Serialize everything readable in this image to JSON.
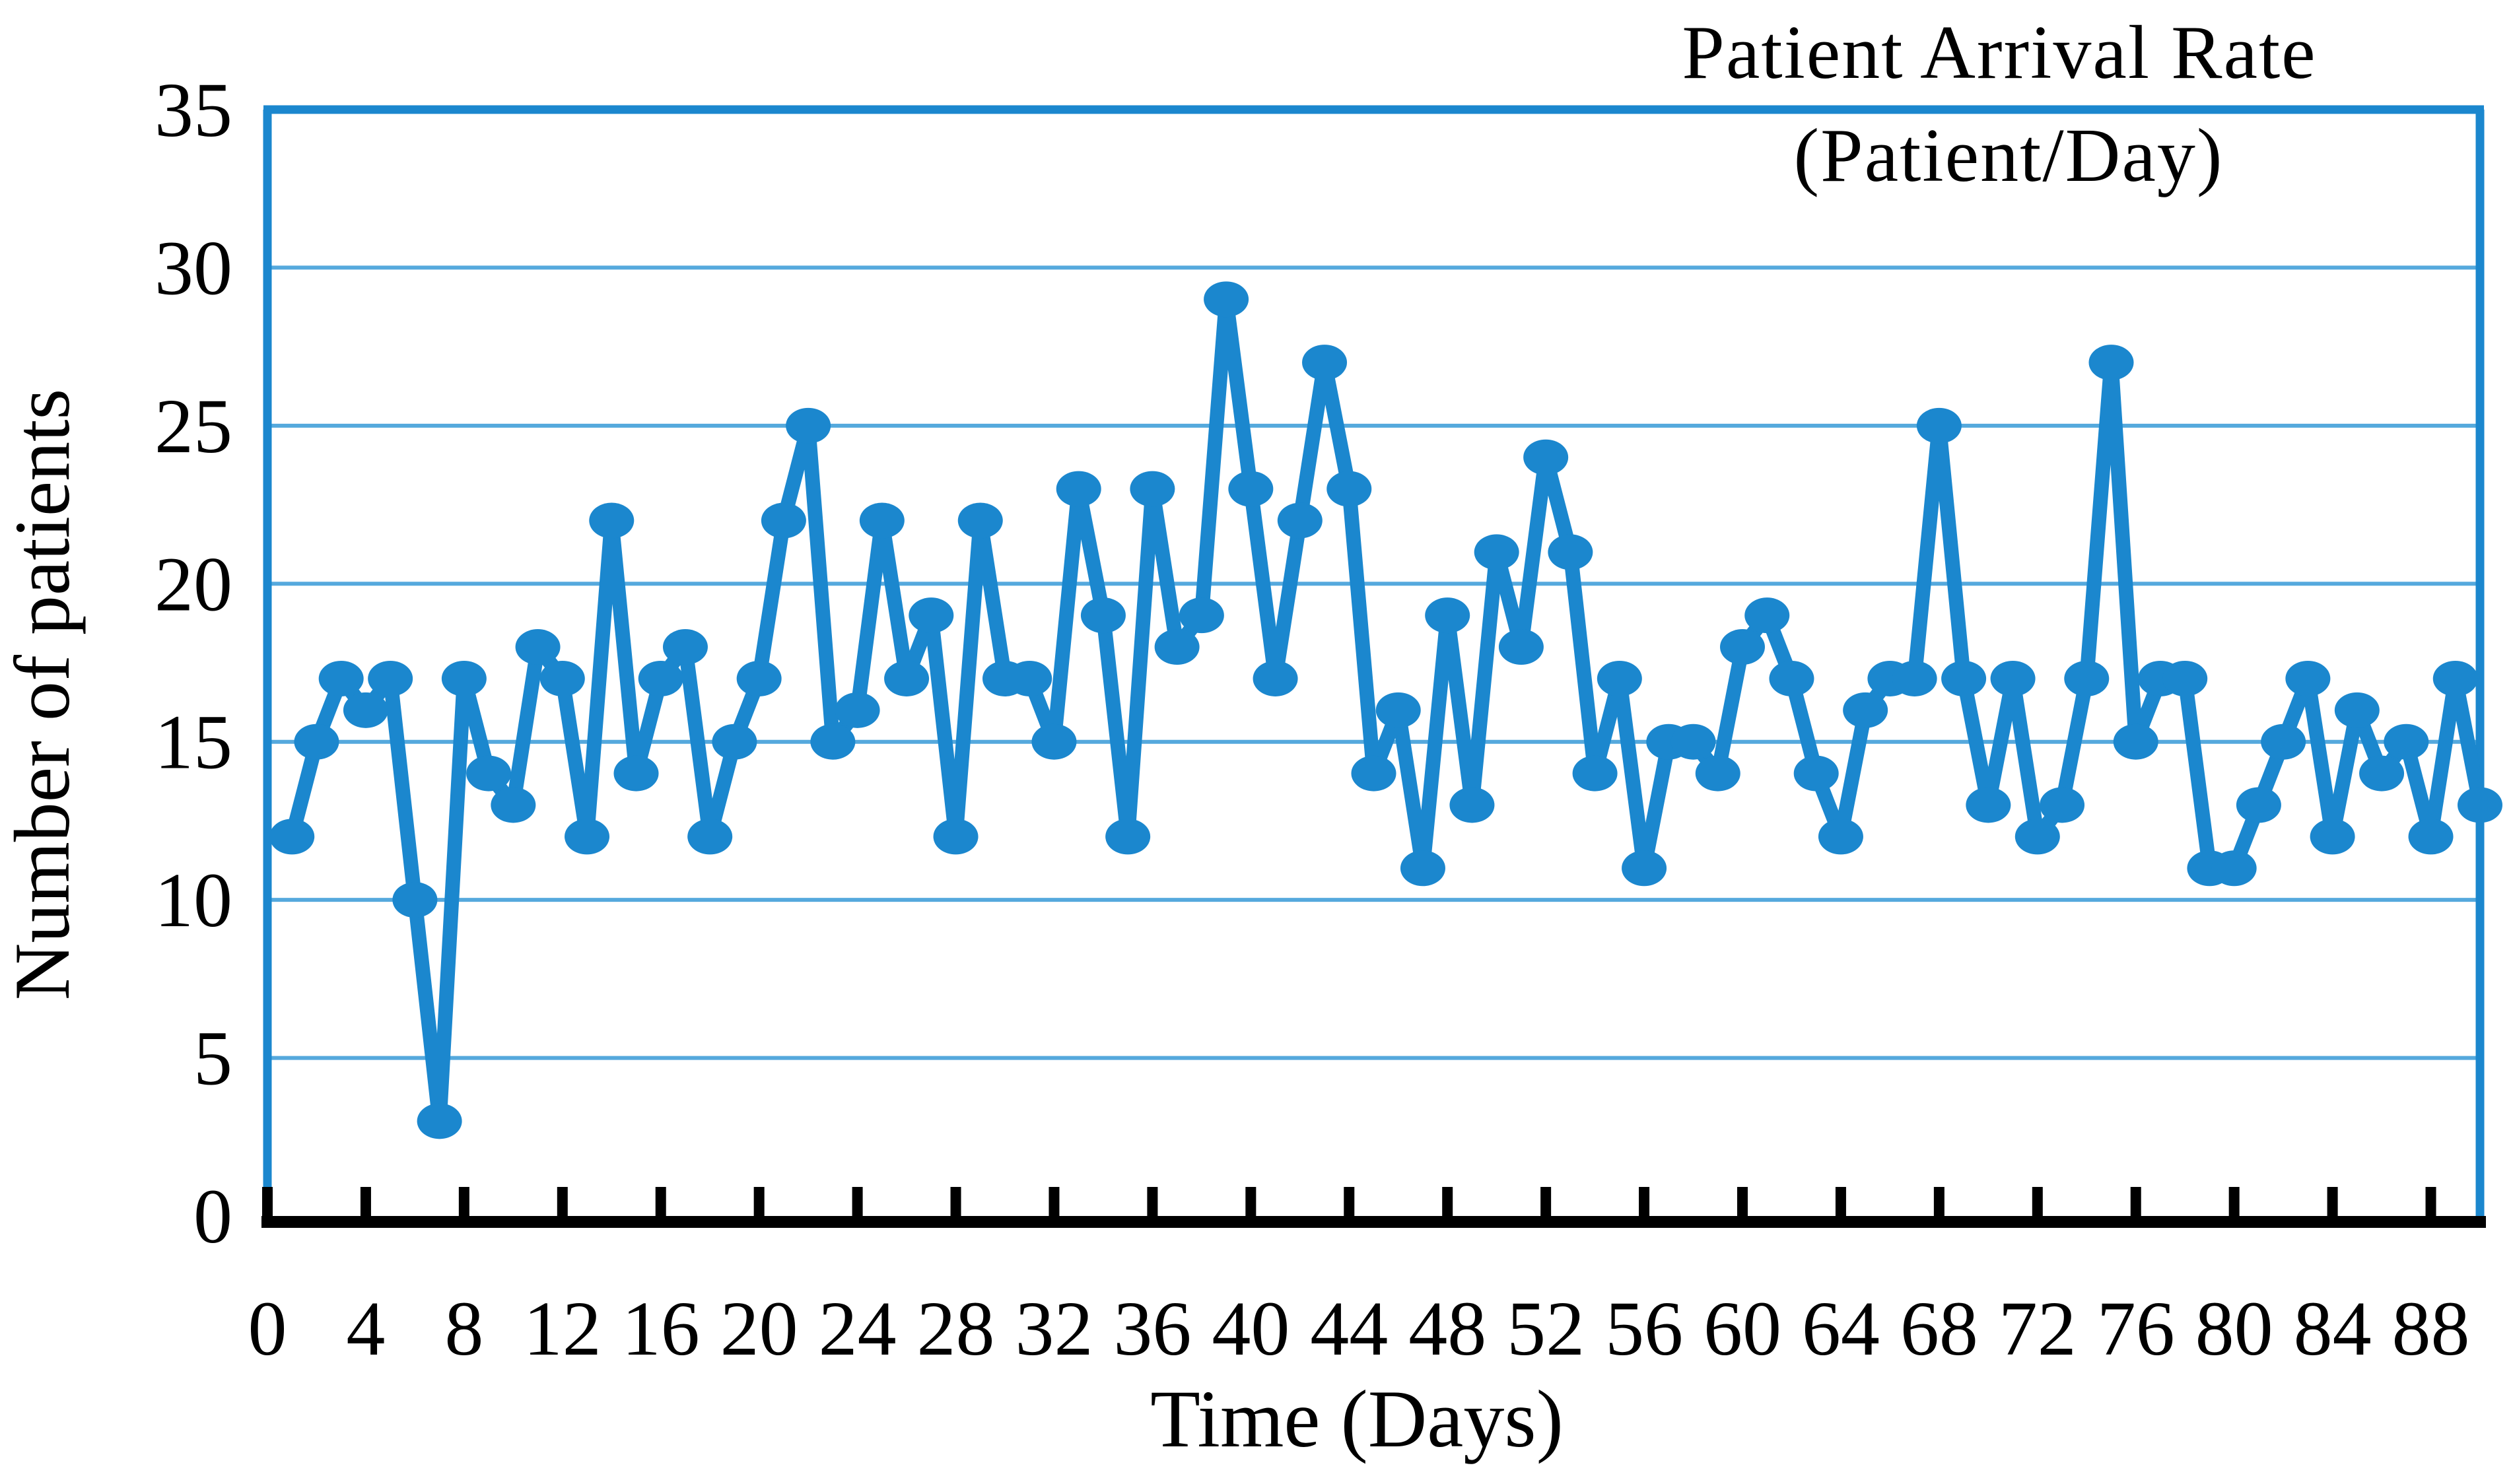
{
  "chart_data": {
    "type": "line",
    "title_line1": "Patient Arrival Rate",
    "title_line2": "(Patient/Day)",
    "xlabel": "Time (Days)",
    "ylabel": "Number of patients",
    "x_first_day": 1,
    "x_step": 1,
    "values": [
      12,
      15,
      17,
      16,
      17,
      10,
      3,
      17,
      14,
      13,
      18,
      17,
      12,
      22,
      14,
      17,
      18,
      12,
      15,
      17,
      22,
      25,
      15,
      16,
      22,
      17,
      19,
      12,
      22,
      17,
      17,
      15,
      23,
      19,
      12,
      23,
      18,
      19,
      29,
      23,
      17,
      22,
      27,
      23,
      14,
      16,
      11,
      19,
      13,
      21,
      18,
      24,
      21,
      14,
      17,
      11,
      15,
      15,
      14,
      18,
      19,
      17,
      14,
      12,
      16,
      17,
      17,
      25,
      17,
      13,
      17,
      12,
      13,
      17,
      27,
      15,
      17,
      17,
      11,
      11,
      13,
      15,
      17,
      12,
      16,
      14,
      15,
      12,
      17,
      13
    ],
    "xlim": [
      0,
      90
    ],
    "ylim": [
      0,
      35
    ],
    "x_ticks": [
      0,
      4,
      8,
      12,
      16,
      20,
      24,
      28,
      32,
      36,
      40,
      44,
      48,
      52,
      56,
      60,
      64,
      68,
      72,
      76,
      80,
      84,
      88
    ],
    "y_ticks": [
      0,
      5,
      10,
      15,
      20,
      25,
      30,
      35
    ],
    "grid": true,
    "legend": "none",
    "marker": "ellipse",
    "colors": {
      "series": "#1b87ce",
      "grid": "#55a9dd",
      "frame": "#1b87ce",
      "axis": "#000000",
      "text": "#000000",
      "background": "#ffffff"
    }
  }
}
